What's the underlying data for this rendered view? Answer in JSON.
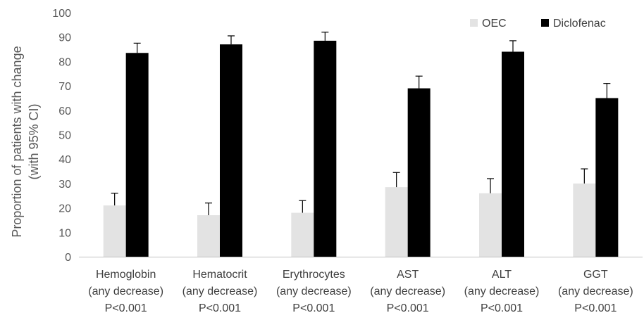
{
  "chart_data": {
    "type": "bar",
    "title": "",
    "ylabel": "Proportion of patients with change (with 95% CI)",
    "ylabel_lines": [
      "Proportion of patients with change",
      "(with 95% CI)"
    ],
    "xlabel": "",
    "ylim": [
      0,
      100
    ],
    "ytick_step": 10,
    "grid": false,
    "legend_position": "top-right",
    "categories": [
      [
        "Hemoglobin",
        "(any decrease)",
        "P<0.001"
      ],
      [
        "Hematocrit",
        "(any decrease)",
        "P<0.001"
      ],
      [
        "Erythrocytes",
        "(any decrease)",
        "P<0.001"
      ],
      [
        "AST",
        "(any decrease)",
        "P<0.001"
      ],
      [
        "ALT",
        "(any decrease)",
        "P<0.001"
      ],
      [
        "GGT",
        "(any decrease)",
        "P<0.001"
      ]
    ],
    "series": [
      {
        "name": "OEC",
        "color": "#e3e3e3",
        "values": [
          21,
          17,
          18,
          28.5,
          26,
          30
        ],
        "ci_upper": [
          26,
          22,
          23,
          34.5,
          32,
          36
        ]
      },
      {
        "name": "Diclofenac",
        "color": "#000000",
        "values": [
          83.5,
          87,
          88.5,
          69,
          84,
          65
        ],
        "ci_upper": [
          87.5,
          90.5,
          92,
          74,
          88.5,
          71
        ]
      }
    ]
  }
}
